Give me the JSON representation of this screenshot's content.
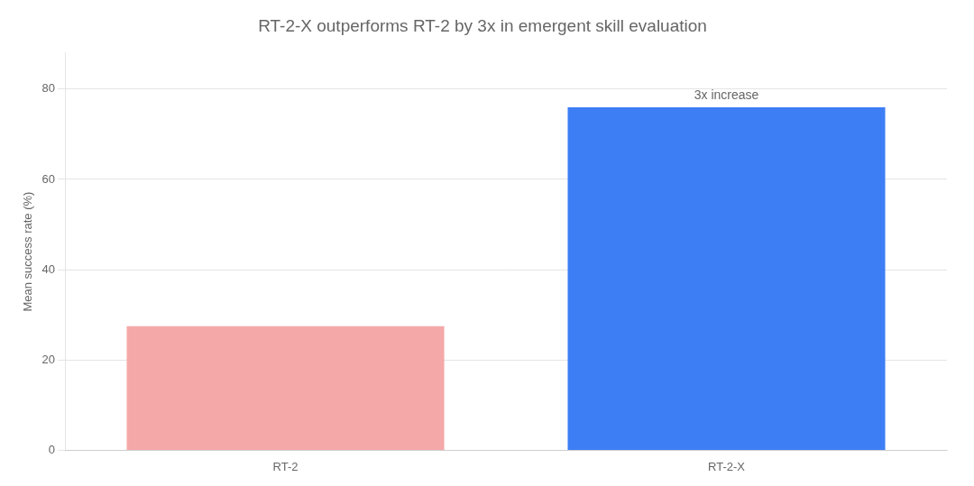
{
  "chart_data": {
    "type": "bar",
    "title": "RT-2-X outperforms RT-2 by 3x in emergent skill evaluation",
    "ylabel": "Mean success rate (%)",
    "categories": [
      "RT-2",
      "RT-2-X"
    ],
    "values": [
      27.5,
      76.0
    ],
    "colors": [
      "#F4A8A8",
      "#3D7EF5"
    ],
    "ylim": [
      0,
      88
    ],
    "yticks": [
      0,
      20,
      40,
      60,
      80
    ],
    "grid": true,
    "annotations": [
      {
        "text": "3x increase",
        "category": "RT-2-X"
      }
    ]
  }
}
